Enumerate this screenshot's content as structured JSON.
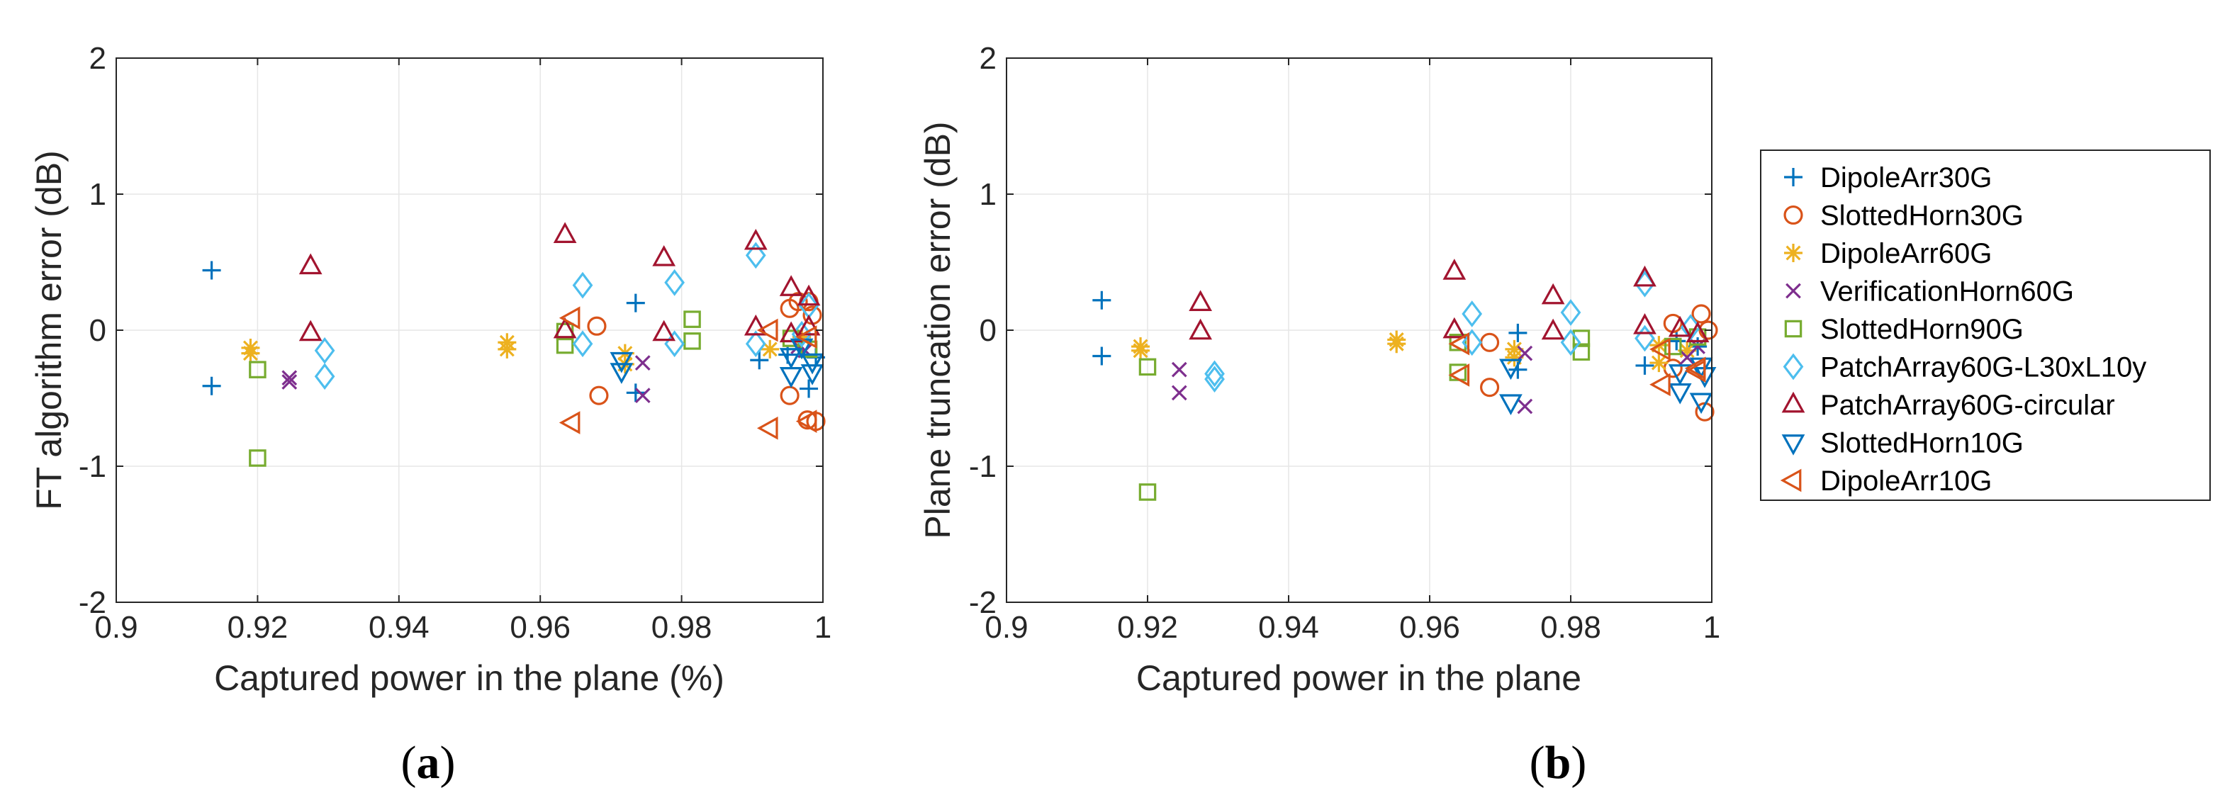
{
  "chart_data": [
    {
      "type": "scatter",
      "panel_label": "a",
      "xlabel": "Captured power in the plane (%)",
      "ylabel": "FT algorithm error (dB)",
      "xlim": [
        0.9,
        1
      ],
      "ylim": [
        -2,
        2
      ],
      "xticks": [
        0.9,
        0.92,
        0.94,
        0.96,
        0.98,
        1
      ],
      "yticks": [
        -2,
        -1,
        0,
        1,
        2
      ],
      "xtick_labels": [
        "0.9",
        "0.92",
        "0.94",
        "0.96",
        "0.98",
        "1"
      ],
      "ytick_labels": [
        "-2",
        "-1",
        "0",
        "1",
        "2"
      ],
      "grid": true,
      "series": [
        {
          "name": "DipoleArr30G",
          "marker": "plus",
          "color": "#0072BD",
          "points": [
            [
              0.9135,
              0.44
            ],
            [
              0.9135,
              -0.41
            ],
            [
              0.9735,
              0.2
            ],
            [
              0.9735,
              -0.46
            ],
            [
              0.991,
              -0.22
            ],
            [
              0.995,
              -0.18
            ],
            [
              0.998,
              -0.43
            ],
            [
              0.997,
              -0.05
            ],
            [
              0.999,
              -0.2
            ]
          ]
        },
        {
          "name": "SlottedHorn30G",
          "marker": "circle",
          "color": "#D95319",
          "points": [
            [
              0.968,
              0.03
            ],
            [
              0.9683,
              -0.48
            ],
            [
              0.9953,
              0.16
            ],
            [
              0.9953,
              -0.48
            ],
            [
              0.9965,
              0.21
            ],
            [
              0.998,
              0.21
            ],
            [
              0.9985,
              0.11
            ],
            [
              0.999,
              -0.67
            ],
            [
              0.9978,
              -0.66
            ]
          ]
        },
        {
          "name": "DipoleArr60G",
          "marker": "asterisk",
          "color": "#EDB120",
          "points": [
            [
              0.919,
              -0.13
            ],
            [
              0.919,
              -0.17
            ],
            [
              0.9553,
              -0.09
            ],
            [
              0.9553,
              -0.14
            ],
            [
              0.972,
              -0.17
            ],
            [
              0.972,
              -0.25
            ],
            [
              0.9925,
              -0.14
            ],
            [
              0.997,
              -0.05
            ]
          ]
        },
        {
          "name": "VerificationHorn60G",
          "marker": "cross",
          "color": "#7E2F8E",
          "points": [
            [
              0.9245,
              -0.35
            ],
            [
              0.9245,
              -0.38
            ],
            [
              0.9745,
              -0.24
            ],
            [
              0.9745,
              -0.48
            ],
            [
              0.9965,
              -0.12
            ],
            [
              0.9975,
              -0.15
            ]
          ]
        },
        {
          "name": "SlottedHorn90G",
          "marker": "square",
          "color": "#77AC30",
          "points": [
            [
              0.92,
              -0.29
            ],
            [
              0.92,
              -0.94
            ],
            [
              0.9635,
              -0.01
            ],
            [
              0.9635,
              -0.11
            ],
            [
              0.9815,
              0.08
            ],
            [
              0.9815,
              -0.08
            ],
            [
              0.9955,
              -0.06
            ],
            [
              0.998,
              -0.14
            ]
          ]
        },
        {
          "name": "PatchArray60G-L30xL10y",
          "marker": "diamond",
          "color": "#4DBEEE",
          "points": [
            [
              0.9295,
              -0.15
            ],
            [
              0.9295,
              -0.34
            ],
            [
              0.966,
              0.33
            ],
            [
              0.966,
              -0.1
            ],
            [
              0.979,
              0.35
            ],
            [
              0.979,
              -0.1
            ],
            [
              0.9905,
              0.55
            ],
            [
              0.9905,
              -0.1
            ],
            [
              0.998,
              0.18
            ],
            [
              0.997,
              -0.03
            ]
          ]
        },
        {
          "name": "PatchArray60G-circular",
          "marker": "triangle-up",
          "color": "#A2142F",
          "points": [
            [
              0.9275,
              0.47
            ],
            [
              0.9275,
              -0.02
            ],
            [
              0.9635,
              0.7
            ],
            [
              0.9635,
              0.0
            ],
            [
              0.9775,
              0.53
            ],
            [
              0.9775,
              -0.02
            ],
            [
              0.9905,
              0.65
            ],
            [
              0.9905,
              0.02
            ],
            [
              0.9955,
              0.31
            ],
            [
              0.9955,
              -0.03
            ],
            [
              0.998,
              0.24
            ],
            [
              0.998,
              0.02
            ]
          ]
        },
        {
          "name": "SlottedHorn10G",
          "marker": "triangle-down",
          "color": "#0072BD",
          "points": [
            [
              0.9715,
              -0.22
            ],
            [
              0.9715,
              -0.3
            ],
            [
              0.9955,
              -0.19
            ],
            [
              0.9955,
              -0.33
            ],
            [
              0.9985,
              -0.23
            ],
            [
              0.9985,
              -0.31
            ],
            [
              0.997,
              -0.12
            ]
          ]
        },
        {
          "name": "DipoleArr10G",
          "marker": "triangle-left",
          "color": "#D95319",
          "points": [
            [
              0.9645,
              0.09
            ],
            [
              0.9645,
              -0.68
            ],
            [
              0.9925,
              0.0
            ],
            [
              0.9925,
              -0.72
            ],
            [
              0.998,
              -0.05
            ],
            [
              0.998,
              -0.67
            ]
          ]
        }
      ]
    },
    {
      "type": "scatter",
      "panel_label": "b",
      "xlabel": "Captured power in the plane",
      "ylabel": "Plane truncation error (dB)",
      "xlim": [
        0.9,
        1
      ],
      "ylim": [
        -2,
        2
      ],
      "xticks": [
        0.9,
        0.92,
        0.94,
        0.96,
        0.98,
        1
      ],
      "yticks": [
        -2,
        -1,
        0,
        1,
        2
      ],
      "xtick_labels": [
        "0.9",
        "0.92",
        "0.94",
        "0.96",
        "0.98",
        "1"
      ],
      "ytick_labels": [
        "-2",
        "-1",
        "0",
        "1",
        "2"
      ],
      "grid": true,
      "legend_position": "outside-right",
      "series": [
        {
          "name": "DipoleArr30G",
          "marker": "plus",
          "color": "#0072BD",
          "points": [
            [
              0.9135,
              0.22
            ],
            [
              0.9135,
              -0.19
            ],
            [
              0.9725,
              -0.02
            ],
            [
              0.9725,
              -0.29
            ],
            [
              0.9905,
              -0.26
            ],
            [
              0.995,
              -0.08
            ],
            [
              0.998,
              -0.12
            ]
          ]
        },
        {
          "name": "SlottedHorn30G",
          "marker": "circle",
          "color": "#D95319",
          "points": [
            [
              0.9685,
              -0.09
            ],
            [
              0.9685,
              -0.42
            ],
            [
              0.9945,
              0.05
            ],
            [
              0.9945,
              -0.28
            ],
            [
              0.9985,
              0.12
            ],
            [
              0.999,
              -0.6
            ],
            [
              0.9995,
              0.0
            ]
          ]
        },
        {
          "name": "DipoleArr60G",
          "marker": "asterisk",
          "color": "#EDB120",
          "points": [
            [
              0.919,
              -0.12
            ],
            [
              0.919,
              -0.15
            ],
            [
              0.9553,
              -0.07
            ],
            [
              0.9553,
              -0.1
            ],
            [
              0.972,
              -0.14
            ],
            [
              0.972,
              -0.2
            ],
            [
              0.9925,
              -0.11
            ],
            [
              0.9925,
              -0.24
            ],
            [
              0.9965,
              -0.15
            ]
          ]
        },
        {
          "name": "VerificationHorn60G",
          "marker": "cross",
          "color": "#7E2F8E",
          "points": [
            [
              0.9245,
              -0.29
            ],
            [
              0.9245,
              -0.46
            ],
            [
              0.9735,
              -0.17
            ],
            [
              0.9735,
              -0.56
            ],
            [
              0.9965,
              -0.2
            ],
            [
              0.998,
              -0.12
            ]
          ]
        },
        {
          "name": "SlottedHorn90G",
          "marker": "square",
          "color": "#77AC30",
          "points": [
            [
              0.92,
              -0.27
            ],
            [
              0.92,
              -1.19
            ],
            [
              0.964,
              -0.09
            ],
            [
              0.964,
              -0.31
            ],
            [
              0.9815,
              -0.06
            ],
            [
              0.9815,
              -0.16
            ],
            [
              0.9945,
              -0.12
            ],
            [
              0.998,
              -0.05
            ]
          ]
        },
        {
          "name": "PatchArray60G-L30xL10y",
          "marker": "diamond",
          "color": "#4DBEEE",
          "points": [
            [
              0.9295,
              -0.32
            ],
            [
              0.9295,
              -0.36
            ],
            [
              0.966,
              0.12
            ],
            [
              0.966,
              -0.09
            ],
            [
              0.98,
              0.13
            ],
            [
              0.98,
              -0.09
            ],
            [
              0.9905,
              0.34
            ],
            [
              0.9905,
              -0.06
            ],
            [
              0.997,
              0.02
            ]
          ]
        },
        {
          "name": "PatchArray60G-circular",
          "marker": "triangle-up",
          "color": "#A2142F",
          "points": [
            [
              0.9275,
              0.2
            ],
            [
              0.9275,
              -0.01
            ],
            [
              0.9635,
              0.43
            ],
            [
              0.9635,
              0.0
            ],
            [
              0.9775,
              0.25
            ],
            [
              0.9775,
              -0.01
            ],
            [
              0.9905,
              0.38
            ],
            [
              0.9905,
              0.03
            ],
            [
              0.9955,
              0.01
            ],
            [
              0.998,
              -0.03
            ]
          ]
        },
        {
          "name": "SlottedHorn10G",
          "marker": "triangle-down",
          "color": "#0072BD",
          "points": [
            [
              0.9715,
              -0.27
            ],
            [
              0.9715,
              -0.53
            ],
            [
              0.9955,
              -0.31
            ],
            [
              0.9955,
              -0.45
            ],
            [
              0.9985,
              -0.26
            ],
            [
              0.9985,
              -0.52
            ],
            [
              0.999,
              -0.33
            ]
          ]
        },
        {
          "name": "DipoleArr10G",
          "marker": "triangle-left",
          "color": "#D95319",
          "points": [
            [
              0.9645,
              -0.1
            ],
            [
              0.9645,
              -0.33
            ],
            [
              0.993,
              -0.14
            ],
            [
              0.993,
              -0.4
            ],
            [
              0.998,
              -0.28
            ],
            [
              0.998,
              -0.3
            ]
          ]
        }
      ]
    }
  ],
  "panels": {
    "a": {
      "open": "(",
      "letter": "a",
      "close": ")"
    },
    "b": {
      "open": "(",
      "letter": "b",
      "close": ")"
    }
  }
}
